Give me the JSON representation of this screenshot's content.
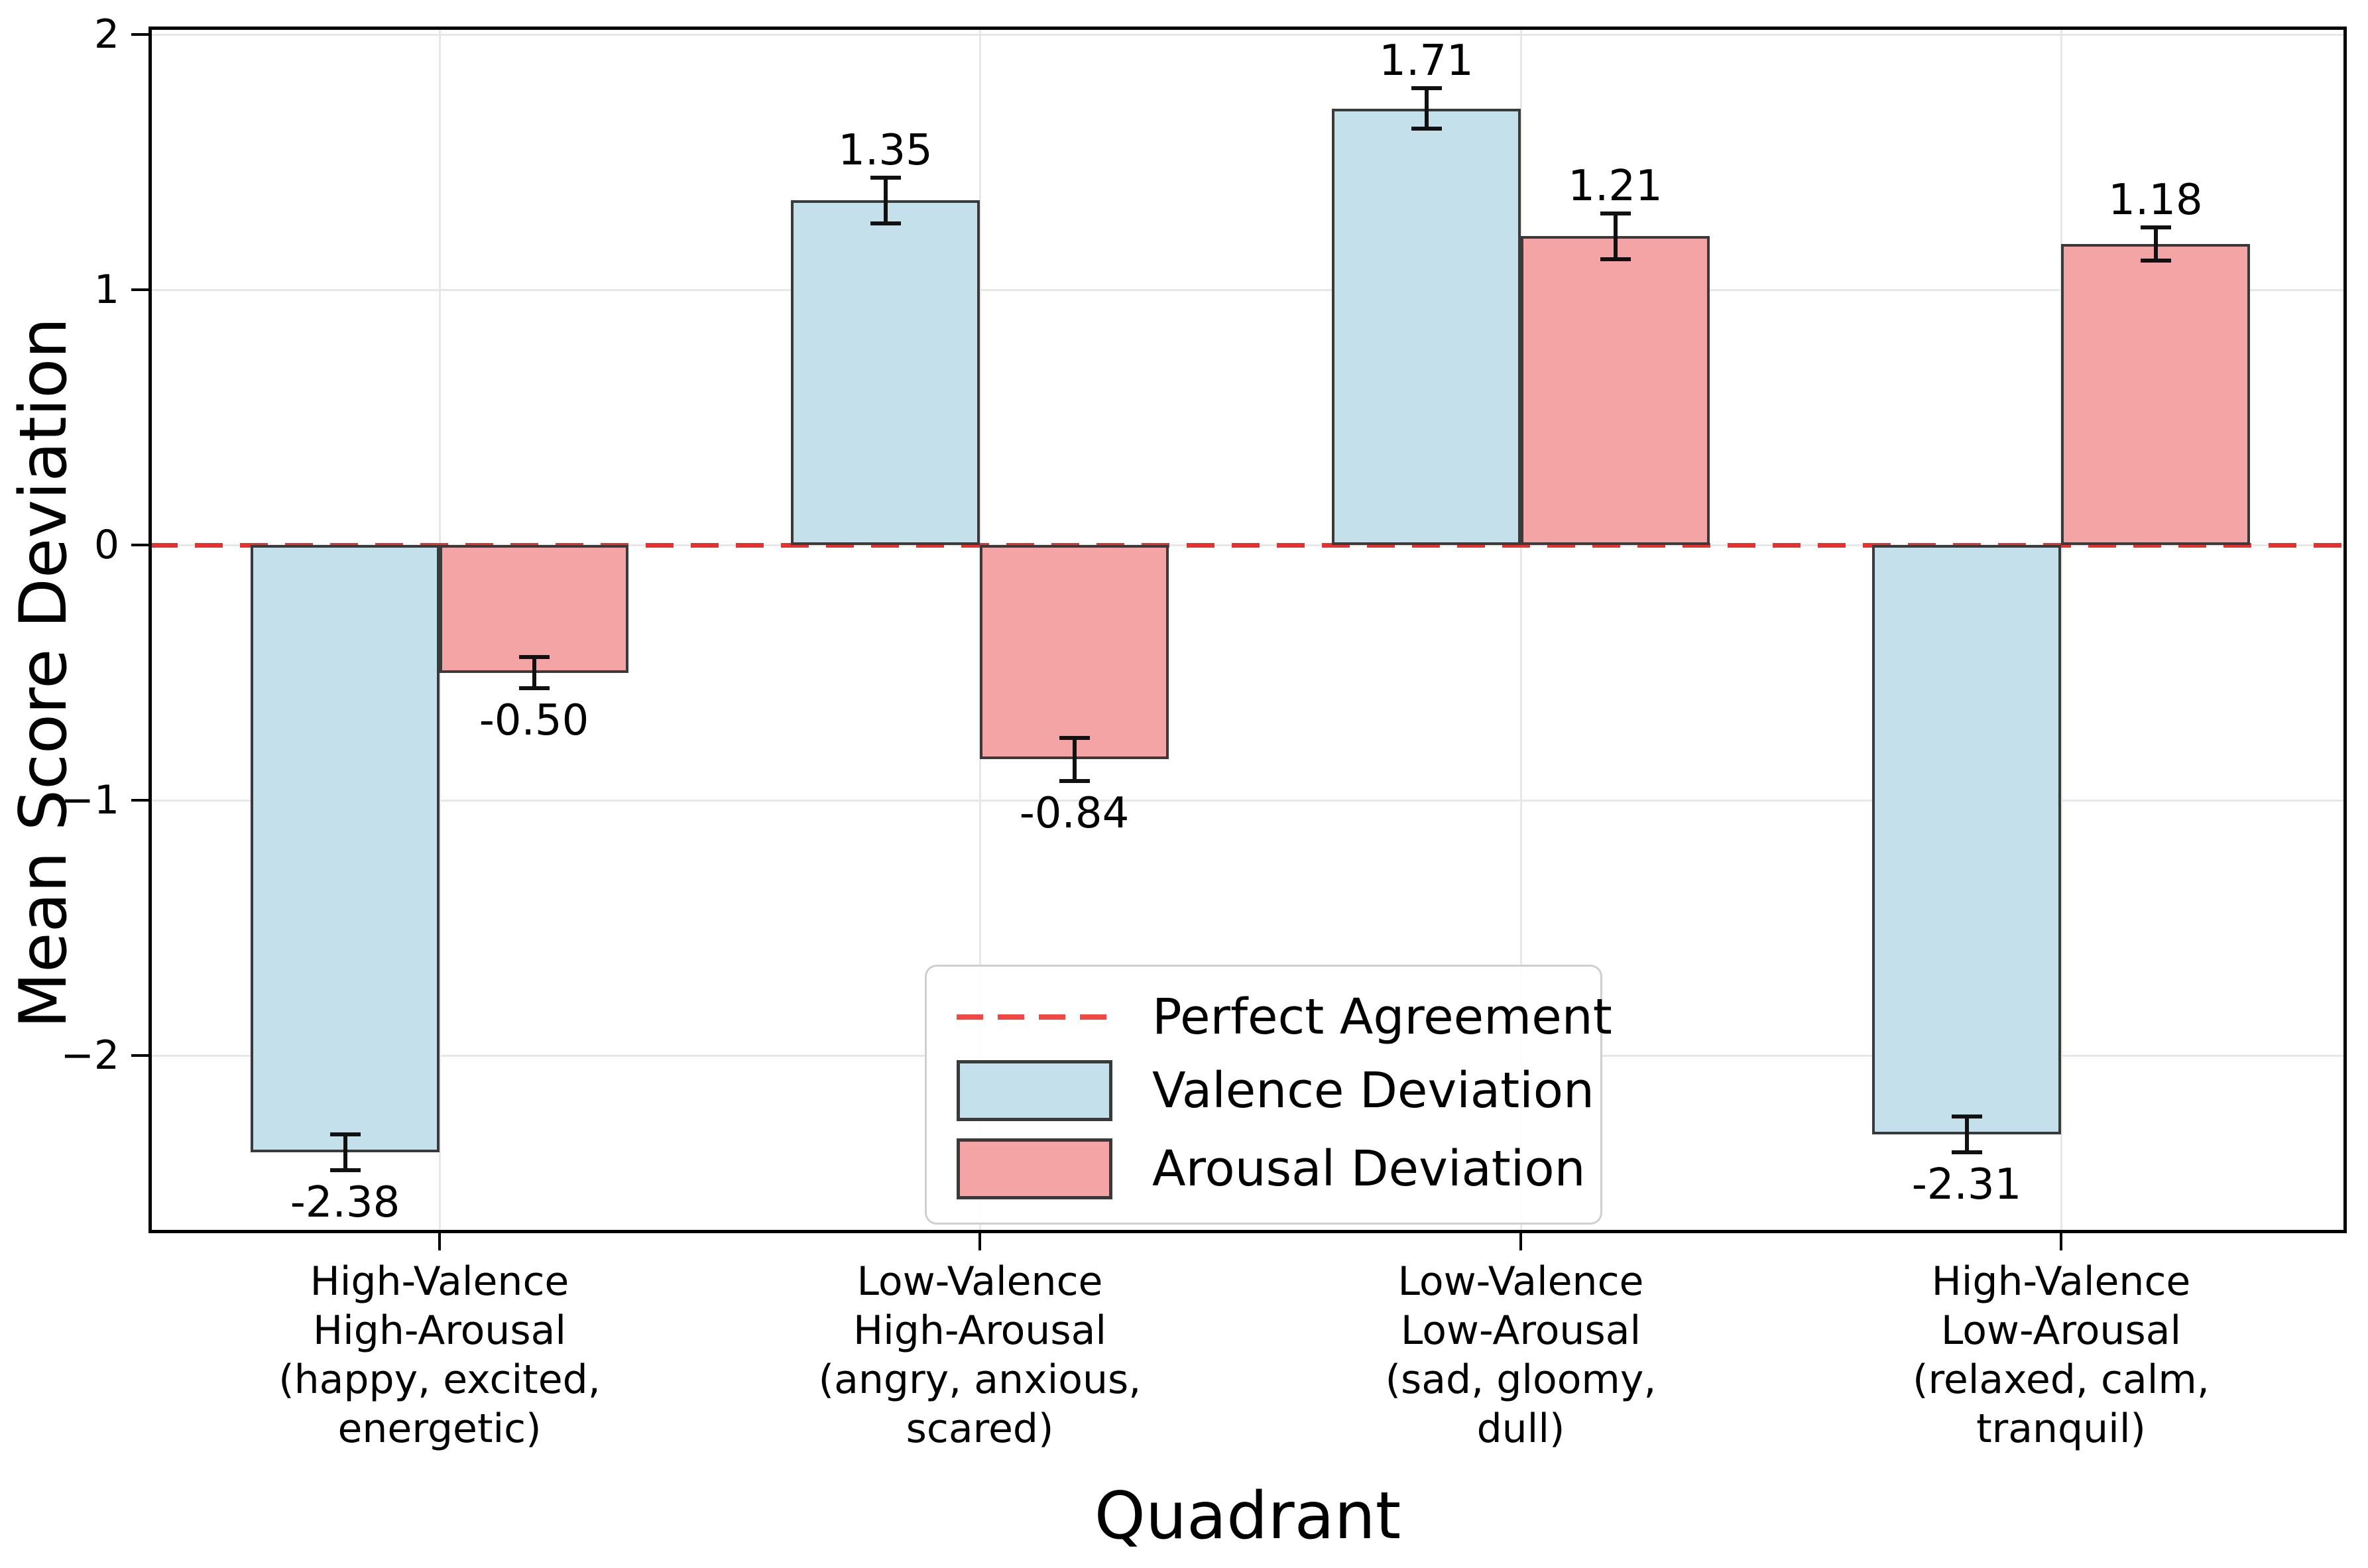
{
  "chart_data": {
    "type": "bar",
    "title": "",
    "xlabel": "Quadrant",
    "ylabel": "Mean Score Deviation",
    "categories": [
      {
        "lines": [
          "High-Valence",
          "High-Arousal",
          "(happy, excited,",
          "energetic)"
        ]
      },
      {
        "lines": [
          "Low-Valence",
          "High-Arousal",
          "(angry, anxious,",
          "scared)"
        ]
      },
      {
        "lines": [
          "Low-Valence",
          "Low-Arousal",
          "(sad, gloomy,",
          "dull)"
        ]
      },
      {
        "lines": [
          "High-Valence",
          "Low-Arousal",
          "(relaxed, calm,",
          "tranquil)"
        ]
      }
    ],
    "series": [
      {
        "name": "Valence Deviation",
        "color": "#c4e1eb",
        "edge_color": "#3a3a3a",
        "values": [
          -2.38,
          1.35,
          1.71,
          -2.31
        ],
        "errors": [
          0.07,
          0.09,
          0.08,
          0.07
        ]
      },
      {
        "name": "Arousal Deviation",
        "color": "#f4a4a4",
        "edge_color": "#3a3a3a",
        "values": [
          -0.5,
          -0.84,
          1.21,
          1.18
        ],
        "errors": [
          0.06,
          0.085,
          0.09,
          0.065
        ]
      }
    ],
    "value_labels": {
      "valence": [
        "-2.38",
        "1.35",
        "1.71",
        "-2.31"
      ],
      "arousal": [
        "-0.50",
        "-0.84",
        "1.21",
        "1.18"
      ]
    },
    "reference_line": {
      "label": "Perfect Agreement",
      "value": 0,
      "color": "#e8312f",
      "style": "dashed"
    },
    "axes": {
      "yticks": [
        2,
        1,
        0,
        -1,
        -2
      ],
      "ylim": [
        -2.69,
        2.03
      ],
      "xlim": [
        -0.54,
        3.53
      ],
      "grid": true
    },
    "legend": {
      "position": "lower center"
    }
  }
}
